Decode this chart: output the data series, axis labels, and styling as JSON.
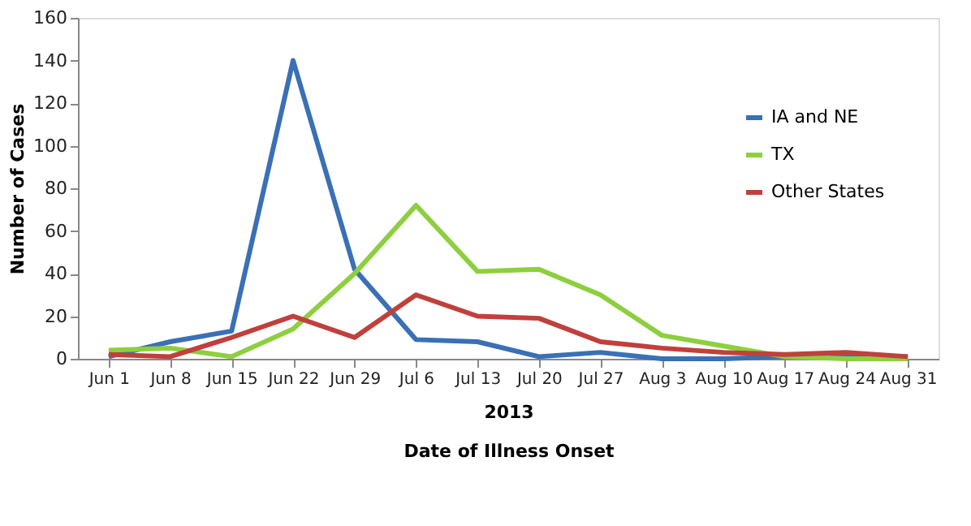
{
  "chart_data": {
    "type": "line",
    "categories": [
      "Jun 1",
      "Jun 8",
      "Jun 15",
      "Jun 22",
      "Jun 29",
      "Jul 6",
      "Jul 13",
      "Jul 20",
      "Jul 27",
      "Aug 3",
      "Aug 10",
      "Aug 17",
      "Aug 24",
      "Aug 31"
    ],
    "series": [
      {
        "name": "IA and NE",
        "color": "#3a70b5",
        "values": [
          1,
          8,
          13,
          140,
          42,
          9,
          8,
          1,
          3,
          0,
          0,
          1,
          1,
          1
        ]
      },
      {
        "name": "TX",
        "color": "#8dcf3f",
        "values": [
          4,
          5,
          1,
          14,
          40,
          72,
          41,
          42,
          30,
          11,
          6,
          1,
          0,
          0
        ]
      },
      {
        "name": "Other States",
        "color": "#c0403c",
        "values": [
          2,
          1,
          10,
          20,
          10,
          30,
          20,
          19,
          8,
          5,
          3,
          2,
          3,
          1
        ]
      }
    ],
    "ylabel": "Number of Cases",
    "xlabel": "Date of Illness Onset",
    "annotations": [
      "2013"
    ],
    "ylim": [
      0,
      160
    ],
    "yticks": [
      0,
      20,
      40,
      60,
      80,
      100,
      120,
      140,
      160
    ],
    "grid": false,
    "legend": "right",
    "marker": "none",
    "line_style": "solid"
  }
}
